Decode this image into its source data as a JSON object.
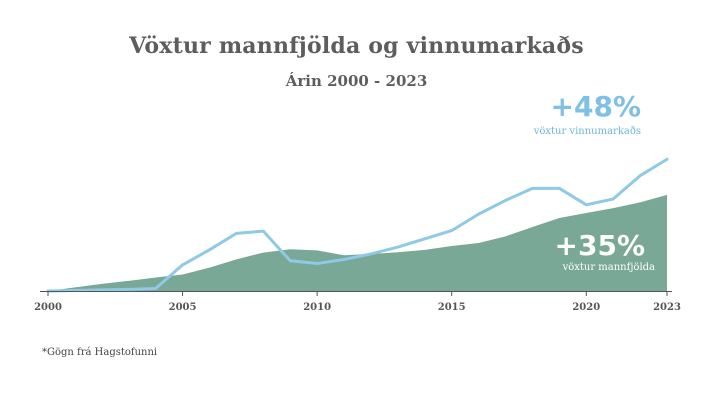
{
  "chart_data": {
    "type": "area",
    "title": "Vöxtur mannfjölda og vinnumarkaðs",
    "subtitle": "Árin 2000 - 2023",
    "xlim": [
      2000,
      2023
    ],
    "ylim": [
      0,
      55
    ],
    "x_ticks": [
      "2000",
      "2005",
      "2010",
      "2015",
      "2020",
      "2023"
    ],
    "grid": false,
    "series": [
      {
        "name": "vöxtur mannfjölda",
        "kind": "area",
        "color": "#7aa896",
        "x": [
          2000,
          2001,
          2002,
          2003,
          2004,
          2005,
          2006,
          2007,
          2008,
          2009,
          2010,
          2011,
          2012,
          2013,
          2014,
          2015,
          2016,
          2017,
          2018,
          2019,
          2020,
          2021,
          2022,
          2023
        ],
        "values": [
          0,
          1.3,
          2.6,
          3.7,
          4.9,
          6.0,
          8.5,
          11.5,
          14.0,
          15.2,
          14.8,
          13.0,
          13.5,
          14.1,
          15.0,
          16.4,
          17.5,
          19.9,
          23.3,
          26.6,
          28.4,
          30.2,
          32.3,
          35
        ]
      },
      {
        "name": "vöxtur vinnumarkaðs",
        "kind": "line",
        "color": "#8ecae6",
        "x": [
          2000,
          2001,
          2002,
          2003,
          2004,
          2005,
          2006,
          2007,
          2008,
          2009,
          2010,
          2011,
          2012,
          2013,
          2014,
          2015,
          2016,
          2017,
          2018,
          2019,
          2020,
          2021,
          2022,
          2023
        ],
        "values": [
          0,
          0.2,
          0.4,
          0.6,
          0.9,
          9.5,
          15.0,
          21.0,
          21.8,
          11.0,
          10.0,
          11.5,
          13.5,
          16.0,
          19.0,
          22.0,
          28.0,
          33.0,
          37.4,
          37.4,
          31.4,
          33.5,
          42.0,
          48
        ]
      }
    ],
    "annotations": [
      {
        "value": "+48%",
        "label": "vöxtur vinnumarkaðs",
        "color": "#7fc0e3"
      },
      {
        "value": "+35%",
        "label": "vöxtur mannfjölda",
        "color": "#ffffff"
      }
    ],
    "footnote": "*Gögn frá Hagstofunni"
  }
}
